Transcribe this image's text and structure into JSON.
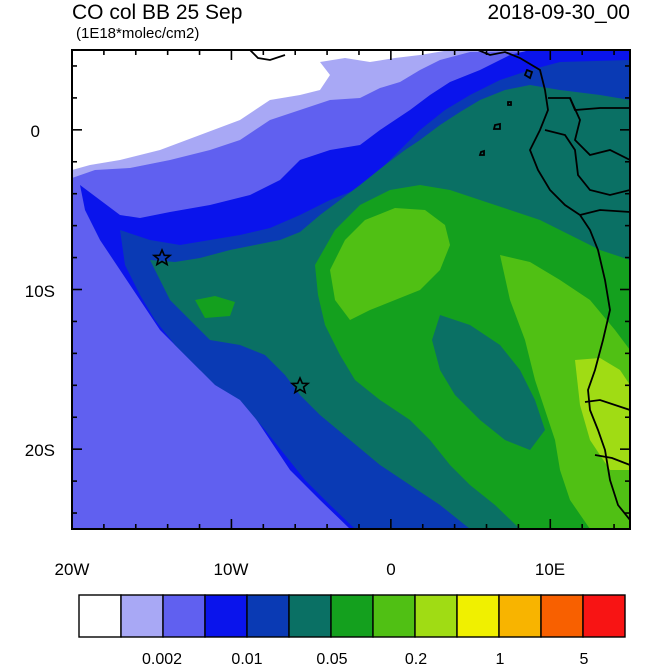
{
  "header": {
    "title": "CO col BB 25 Sep",
    "date": "2018-09-30_00",
    "units": "(1E18*molec/cm2)"
  },
  "map": {
    "region": "Southeast Atlantic / SW Africa",
    "lon_range": [
      -20,
      15
    ],
    "lat_range": [
      -25,
      5
    ],
    "lon_labels": [
      "20W",
      "10W",
      "0",
      "10E"
    ],
    "lat_labels": [
      "0",
      "10S",
      "20S"
    ],
    "markers": [
      {
        "name": "star-marker-north",
        "lon": -14.3,
        "lat": -8.0
      },
      {
        "name": "star-marker-south",
        "lon": -5.7,
        "lat": -16.0
      }
    ]
  },
  "colorbar": {
    "colors": [
      "#ffffff",
      "#a8a8f5",
      "#6060f0",
      "#0a14ec",
      "#0a3ab4",
      "#0a7064",
      "#14a01e",
      "#50c014",
      "#a0dc14",
      "#f0f000",
      "#f8b400",
      "#f86000",
      "#f81414"
    ],
    "labels": [
      "0.002",
      "0.01",
      "0.05",
      "0.2",
      "1",
      "5"
    ]
  },
  "colors": {
    "land_outline": "#000000",
    "frame": "#000000"
  }
}
